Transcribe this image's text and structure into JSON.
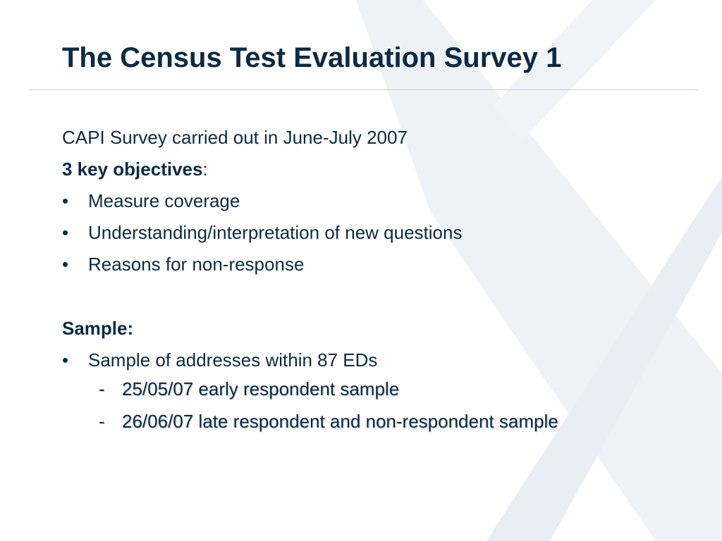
{
  "slide": {
    "title": "The Census Test Evaluation Survey 1",
    "intro": "CAPI Survey carried out in June-July 2007",
    "objectives_heading": "3 key objectives",
    "objectives_colon": ":",
    "bullet_symbol": "•",
    "objectives": [
      "Measure coverage",
      "Understanding/interpretation of new questions",
      "Reasons for non-response"
    ],
    "sample_heading": "Sample:",
    "sample_bullet": "Sample of addresses within 87 EDs",
    "dash_symbol": "-",
    "sample_subitems": [
      "25/05/07 early respondent sample",
      "26/06/07 late respondent and non-respondent sample"
    ]
  },
  "colors": {
    "title_text": "#0b2a45",
    "divider": "#c9d29a",
    "watermark": "#e9eef4"
  },
  "icons": {
    "watermark": "x-logo-watermark"
  }
}
